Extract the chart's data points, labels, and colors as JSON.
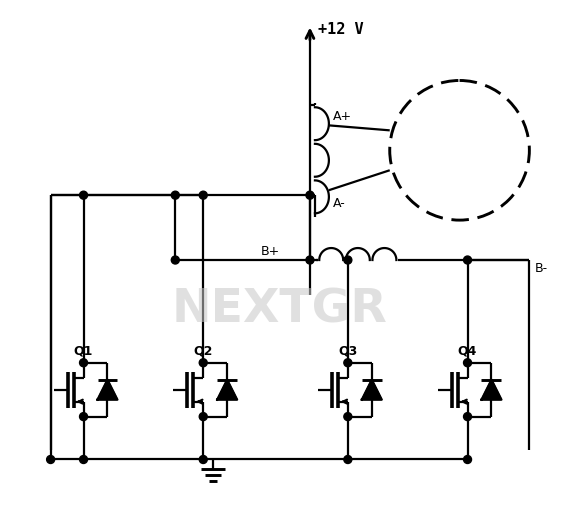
{
  "bg_color": "#ffffff",
  "line_color": "#000000",
  "lw": 1.6,
  "supply_label": "+12 V",
  "watermark": "NEXTGR",
  "watermark_color": "#c8c8c8",
  "coil_A_plus": "A+",
  "coil_A_minus": "A-",
  "coil_B_plus": "B+",
  "coil_B_minus": "B-",
  "q_labels": [
    "Q1",
    "Q2",
    "Q3",
    "Q4"
  ]
}
